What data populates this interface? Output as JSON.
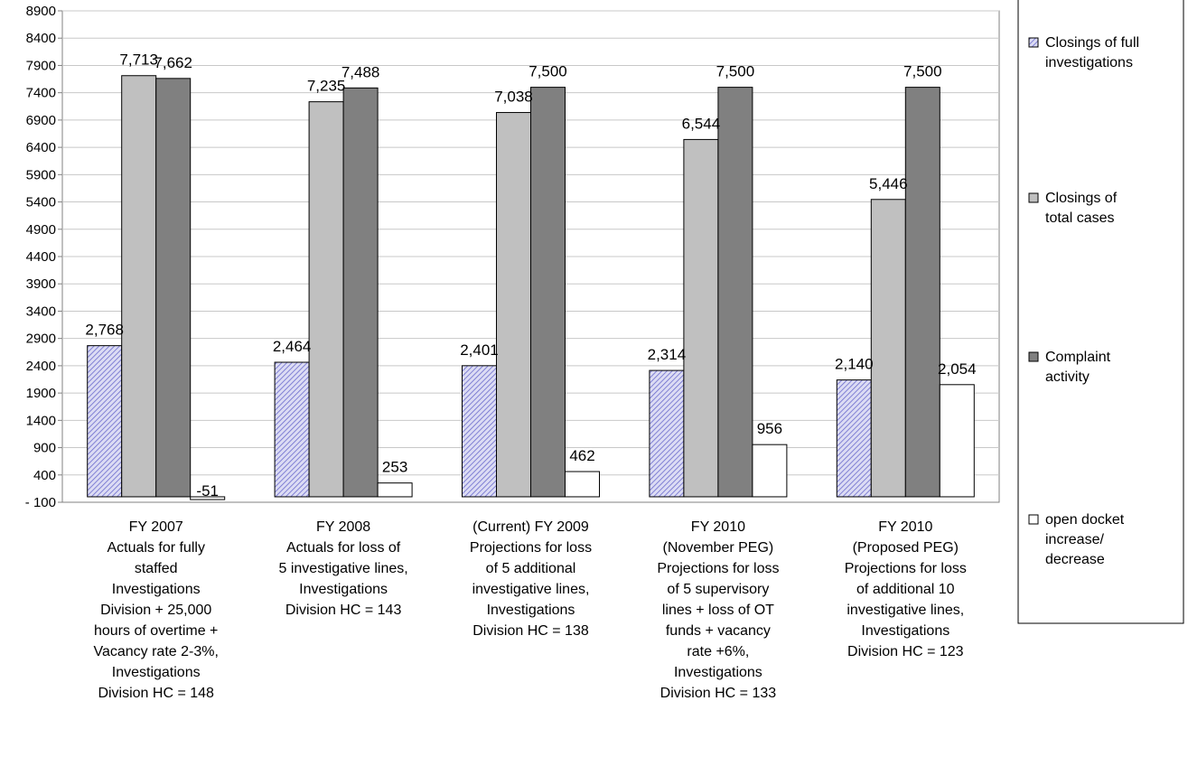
{
  "chart_data": {
    "type": "bar",
    "title": "",
    "xlabel": "",
    "ylabel": "",
    "ylim": [
      -100,
      8900
    ],
    "yticks": [
      -100,
      400,
      900,
      1400,
      1900,
      2400,
      2900,
      3400,
      3900,
      4400,
      4900,
      5400,
      5900,
      6400,
      6900,
      7400,
      7900,
      8400,
      8900
    ],
    "grid": true,
    "legend_position": "right",
    "categories": [
      "FY 2007 Actuals for fully staffed Investigations Division + 25,000 hours of overtime + Vacancy rate 2-3%, Investigations Division HC = 148",
      "FY 2008 Actuals for loss of 5 investigative lines, Investigations Division HC = 143",
      "(Current) FY 2009 Projections for loss of 5 additional investigative lines, Investigations Division HC = 138",
      "FY 2010 (November PEG) Projections for loss of 5 supervisory lines + loss of OT funds + vacancy rate +6%, Investigations Division HC = 133",
      "FY 2010 (Proposed PEG) Projections for loss of additional 10 investigative lines, Investigations Division HC = 123"
    ],
    "category_lines": [
      [
        "FY 2007",
        "Actuals for fully",
        "staffed",
        "Investigations",
        "Division + 25,000",
        "hours of overtime +",
        "Vacancy rate 2-3%,",
        "Investigations",
        "Division HC = 148"
      ],
      [
        "FY 2008",
        "Actuals for loss of",
        "5 investigative lines,",
        "Investigations",
        "Division HC = 143"
      ],
      [
        "(Current) FY 2009",
        "Projections for loss",
        "of 5 additional",
        "investigative lines,",
        "Investigations",
        "Division HC = 138"
      ],
      [
        "FY 2010",
        "(November PEG)",
        "Projections for loss",
        "of 5 supervisory",
        "lines + loss of OT",
        "funds + vacancy",
        "rate +6%,",
        "Investigations",
        "Division HC = 133"
      ],
      [
        "FY 2010",
        "(Proposed PEG)",
        "Projections for loss",
        "of additional 10",
        "investigative lines,",
        "Investigations",
        "Division HC = 123"
      ]
    ],
    "series": [
      {
        "name": "Closings of full investigations",
        "name_lines": [
          "Closings of full",
          "investigations"
        ],
        "fill": "hatch",
        "color": "#8080d0",
        "values": [
          2768,
          2464,
          2401,
          2314,
          2140
        ],
        "labels": [
          "2,768",
          "2,464",
          "2,401",
          "2,314",
          "2,140"
        ]
      },
      {
        "name": "Closings of total cases",
        "name_lines": [
          "Closings of",
          "total cases"
        ],
        "fill": "solid",
        "color": "#c0c0c0",
        "values": [
          7713,
          7235,
          7038,
          6544,
          5446
        ],
        "labels": [
          "7,713",
          "7,235",
          "7,038",
          "6,544",
          "5,446"
        ]
      },
      {
        "name": "Complaint activity",
        "name_lines": [
          "Complaint",
          "activity"
        ],
        "fill": "solid",
        "color": "#808080",
        "values": [
          7662,
          7488,
          7500,
          7500,
          7500
        ],
        "labels": [
          "7,662",
          "7,488",
          "7,500",
          "7,500",
          "7,500"
        ]
      },
      {
        "name": "open docket increase/ decrease",
        "name_lines": [
          "open docket",
          "increase/",
          "decrease"
        ],
        "fill": "solid",
        "color": "#ffffff",
        "values": [
          -51,
          253,
          462,
          956,
          2054
        ],
        "labels": [
          "-51",
          "253",
          "462",
          "956",
          "2,054"
        ]
      }
    ]
  }
}
